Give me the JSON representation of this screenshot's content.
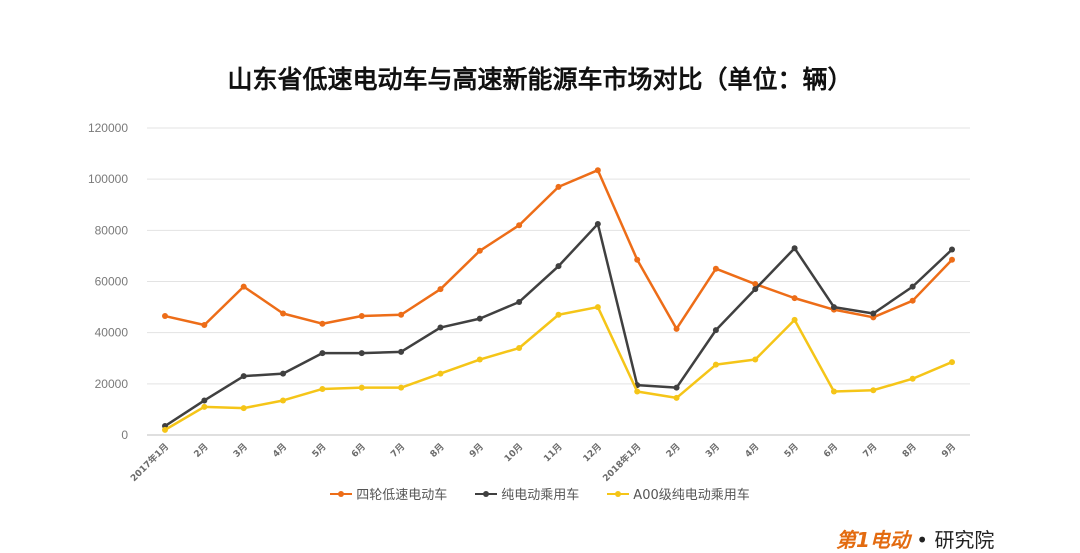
{
  "chart_data": {
    "type": "line",
    "title": "山东省低速电动车与高速新能源车市场对比（单位：辆）",
    "xlabel": "",
    "ylabel": "",
    "categories": [
      "2017年1月",
      "2月",
      "3月",
      "4月",
      "5月",
      "6月",
      "7月",
      "8月",
      "9月",
      "10月",
      "11月",
      "12月",
      "2018年1月",
      "2月",
      "3月",
      "4月",
      "5月",
      "6月",
      "7月",
      "8月",
      "9月"
    ],
    "ylim": [
      0,
      120000
    ],
    "yticks": [
      0,
      20000,
      40000,
      60000,
      80000,
      100000,
      120000
    ],
    "grid": true,
    "legend_position": "bottom",
    "series": [
      {
        "name": "四轮低速电动车",
        "color": "#ed6d18",
        "values": [
          46500,
          43000,
          58000,
          47500,
          43500,
          46500,
          47000,
          57000,
          72000,
          82000,
          97000,
          103500,
          68500,
          41500,
          65000,
          59000,
          53500,
          49000,
          46000,
          52500,
          68500
        ]
      },
      {
        "name": "纯电动乘用车",
        "color": "#404040",
        "values": [
          3500,
          13500,
          23000,
          24000,
          32000,
          32000,
          32500,
          42000,
          45500,
          52000,
          66000,
          82500,
          19500,
          18500,
          41000,
          57000,
          73000,
          50000,
          47500,
          58000,
          72500
        ]
      },
      {
        "name": "A00级纯电动乘用车",
        "color": "#f5c518",
        "values": [
          2000,
          11000,
          10500,
          13500,
          18000,
          18500,
          18500,
          24000,
          29500,
          34000,
          47000,
          50000,
          17000,
          14500,
          27500,
          29500,
          45000,
          17000,
          17500,
          22000,
          28500
        ]
      }
    ]
  },
  "logo": {
    "part1": "第1电动",
    "dot": "•",
    "part2": "研究院"
  }
}
